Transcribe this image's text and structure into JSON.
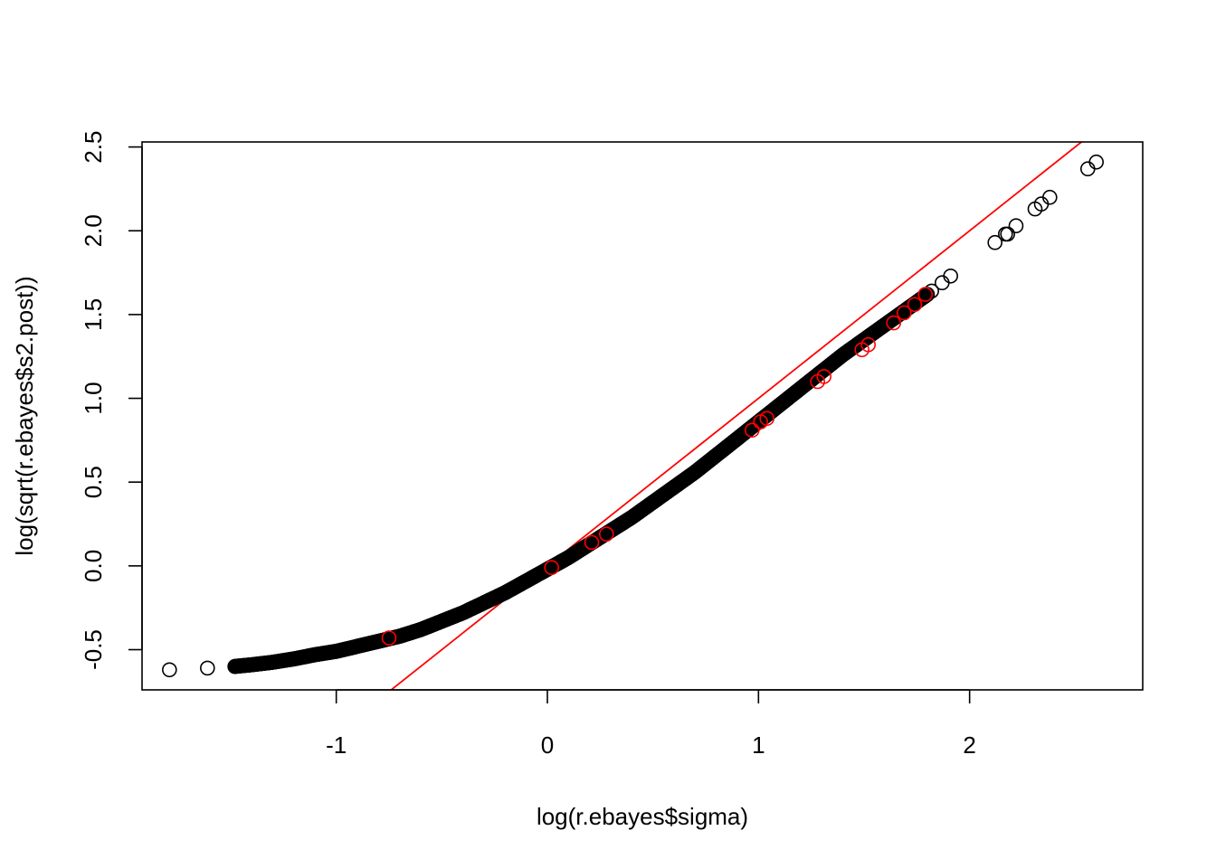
{
  "chart_data": {
    "type": "scatter",
    "title": "",
    "xlabel": "log(r.ebayes$sigma)",
    "ylabel": "log(sqrt(r.ebayes$s2.post))",
    "xlim": [
      -1.92,
      2.82
    ],
    "ylim": [
      -0.74,
      2.53
    ],
    "xticks": [
      -1,
      0,
      1,
      2
    ],
    "yticks": [
      -0.5,
      0.0,
      0.5,
      1.0,
      1.5,
      2.0,
      2.5
    ],
    "xtick_labels": [
      "-1",
      "0",
      "1",
      "2"
    ],
    "ytick_labels": [
      "-0.5",
      "0.0",
      "0.5",
      "1.0",
      "1.5",
      "2.0",
      "2.5"
    ],
    "grid": false,
    "legend": "none",
    "reference_line": {
      "intercept": 0,
      "slope": 1,
      "color": "#ff0000"
    },
    "series": [
      {
        "color": "#000000",
        "marker": "open-circle",
        "curve_x": [
          -1.48,
          -1.4,
          -1.3,
          -1.2,
          -1.1,
          -1.0,
          -0.9,
          -0.8,
          -0.7,
          -0.6,
          -0.5,
          -0.4,
          -0.3,
          -0.2,
          -0.1,
          0.0,
          0.1,
          0.2,
          0.3,
          0.4,
          0.5,
          0.6,
          0.7,
          0.8,
          0.9,
          1.0,
          1.1,
          1.2,
          1.3,
          1.4,
          1.5,
          1.6,
          1.7,
          1.8
        ],
        "curve_y": [
          -0.6,
          -0.59,
          -0.575,
          -0.555,
          -0.53,
          -0.51,
          -0.48,
          -0.45,
          -0.42,
          -0.38,
          -0.33,
          -0.28,
          -0.22,
          -0.16,
          -0.09,
          -0.02,
          0.05,
          0.13,
          0.21,
          0.29,
          0.38,
          0.47,
          0.56,
          0.66,
          0.76,
          0.86,
          0.96,
          1.06,
          1.16,
          1.26,
          1.35,
          1.44,
          1.53,
          1.62
        ],
        "outliers": [
          {
            "x": -1.79,
            "y": -0.62
          },
          {
            "x": -1.61,
            "y": -0.61
          },
          {
            "x": -1.48,
            "y": -0.6
          },
          {
            "x": 1.82,
            "y": 1.64
          },
          {
            "x": 1.87,
            "y": 1.69
          },
          {
            "x": 1.91,
            "y": 1.73
          },
          {
            "x": 2.12,
            "y": 1.93
          },
          {
            "x": 2.17,
            "y": 1.98
          },
          {
            "x": 2.18,
            "y": 1.98
          },
          {
            "x": 2.22,
            "y": 2.03
          },
          {
            "x": 2.31,
            "y": 2.13
          },
          {
            "x": 2.34,
            "y": 2.16
          },
          {
            "x": 2.38,
            "y": 2.2
          },
          {
            "x": 2.56,
            "y": 2.37
          },
          {
            "x": 2.6,
            "y": 2.41
          }
        ]
      },
      {
        "color": "#ff0000",
        "marker": "open-circle",
        "points": [
          {
            "x": -0.75,
            "y": -0.43
          },
          {
            "x": 0.02,
            "y": -0.01
          },
          {
            "x": 0.21,
            "y": 0.14
          },
          {
            "x": 0.28,
            "y": 0.19
          },
          {
            "x": 0.97,
            "y": 0.81
          },
          {
            "x": 1.01,
            "y": 0.86
          },
          {
            "x": 1.04,
            "y": 0.88
          },
          {
            "x": 1.28,
            "y": 1.1
          },
          {
            "x": 1.31,
            "y": 1.13
          },
          {
            "x": 1.49,
            "y": 1.29
          },
          {
            "x": 1.52,
            "y": 1.32
          },
          {
            "x": 1.64,
            "y": 1.45
          },
          {
            "x": 1.69,
            "y": 1.51
          },
          {
            "x": 1.74,
            "y": 1.56
          },
          {
            "x": 1.79,
            "y": 1.62
          }
        ]
      }
    ]
  }
}
